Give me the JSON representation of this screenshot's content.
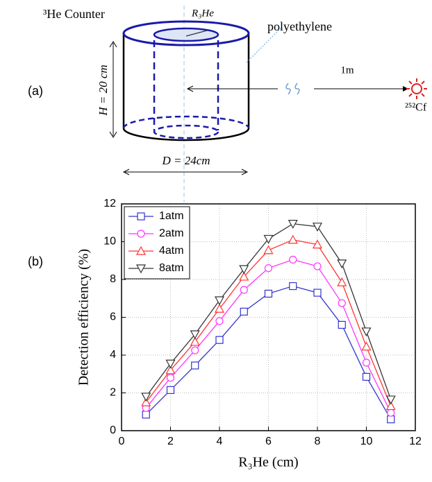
{
  "panel_labels": [
    "(a)",
    "(b)"
  ],
  "diagram": {
    "counter_label": "³He Counter",
    "radius_label": "R₃He",
    "material_label": "polyethylene",
    "height_label": "H = 20 cm",
    "distance_label": "1m",
    "source_label": "²⁵²Cf",
    "diameter_label": "D = 24cm"
  },
  "chart_data": {
    "type": "line",
    "x_label": "R₃He (cm)",
    "y_label": "Detection efficiency (%)",
    "x": [
      1,
      2,
      3,
      4,
      5,
      6,
      7,
      8,
      9,
      10,
      11
    ],
    "series": [
      {
        "name": "1atm",
        "color": "#3333cc",
        "marker": "square",
        "values": [
          0.85,
          2.15,
          3.45,
          4.8,
          6.3,
          7.25,
          7.65,
          7.3,
          5.6,
          2.85,
          0.6
        ]
      },
      {
        "name": "2atm",
        "color": "#ff33ff",
        "marker": "circle",
        "values": [
          1.2,
          2.8,
          4.25,
          5.8,
          7.45,
          8.6,
          9.05,
          8.7,
          6.75,
          3.6,
          0.95
        ]
      },
      {
        "name": "4atm",
        "color": "#ff3333",
        "marker": "triangle-up",
        "values": [
          1.5,
          3.2,
          4.7,
          6.45,
          8.15,
          9.55,
          10.1,
          9.85,
          7.85,
          4.45,
          1.3
        ]
      },
      {
        "name": "8atm",
        "color": "#333333",
        "marker": "triangle-down",
        "values": [
          1.8,
          3.55,
          5.1,
          6.9,
          8.55,
          10.15,
          10.95,
          10.8,
          8.85,
          5.25,
          1.65
        ]
      }
    ],
    "xlim": [
      0,
      12
    ],
    "xticks": [
      0,
      2,
      4,
      6,
      8,
      10,
      12
    ],
    "ylim": [
      0,
      12
    ],
    "yticks": [
      0,
      2,
      4,
      6,
      8,
      10,
      12
    ],
    "grid": true,
    "legend": "upper-left"
  }
}
